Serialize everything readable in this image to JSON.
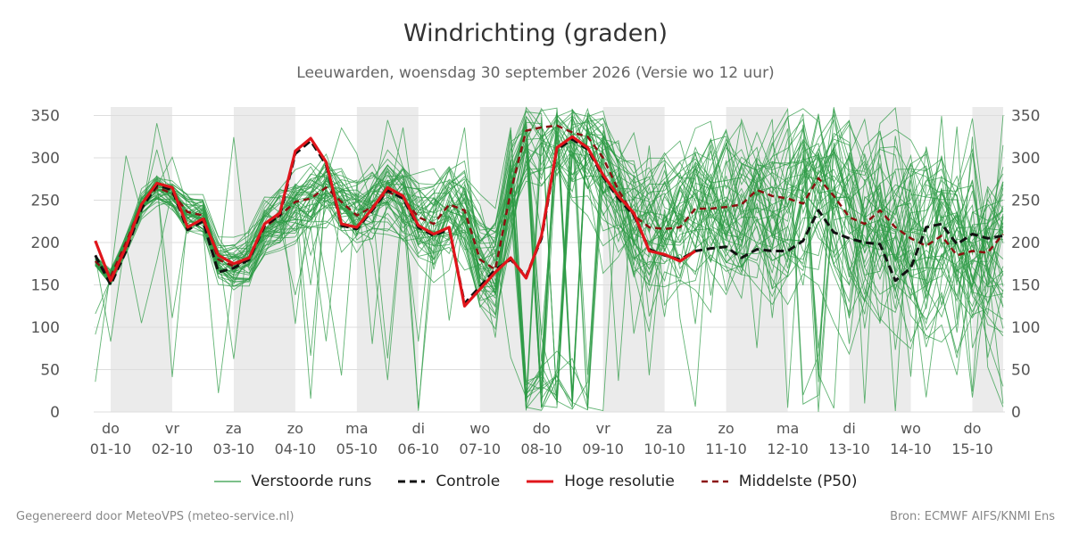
{
  "title": "Windrichting (graden)",
  "subtitle": "Leeuwarden, woensdag 30 september 2026 (Versie wo 12 uur)",
  "footer": {
    "left": "Gegenereerd door MeteoVPS (meteo-service.nl)",
    "right": "Bron: ECMWF AIFS/KNMI Ens"
  },
  "colors": {
    "ensemble": "#2e9b45",
    "control": "#111111",
    "hires": "#e0151b",
    "median": "#8b1010",
    "weekend_shade": "#ebebeb",
    "grid": "#dddddd"
  },
  "chart_data": {
    "type": "line",
    "title": "Windrichting (graden)",
    "ylabel": "",
    "ylim": [
      0,
      360
    ],
    "yticks": [
      0,
      50,
      100,
      150,
      200,
      250,
      300,
      350
    ],
    "x_unit": "day offset from do 01-10 00:00",
    "xlim": [
      -0.2,
      14.5
    ],
    "xticks": [
      {
        "x": 0,
        "day": "do",
        "date": "01-10"
      },
      {
        "x": 1,
        "day": "vr",
        "date": "02-10"
      },
      {
        "x": 2,
        "day": "za",
        "date": "03-10"
      },
      {
        "x": 3,
        "day": "zo",
        "date": "04-10"
      },
      {
        "x": 4,
        "day": "ma",
        "date": "05-10"
      },
      {
        "x": 5,
        "day": "di",
        "date": "06-10"
      },
      {
        "x": 6,
        "day": "wo",
        "date": "07-10"
      },
      {
        "x": 7,
        "day": "do",
        "date": "08-10"
      },
      {
        "x": 8,
        "day": "vr",
        "date": "09-10"
      },
      {
        "x": 9,
        "day": "za",
        "date": "10-10"
      },
      {
        "x": 10,
        "day": "zo",
        "date": "11-10"
      },
      {
        "x": 11,
        "day": "ma",
        "date": "12-10"
      },
      {
        "x": 12,
        "day": "di",
        "date": "13-10"
      },
      {
        "x": 13,
        "day": "wo",
        "date": "14-10"
      },
      {
        "x": 14,
        "day": "do",
        "date": "15-10"
      }
    ],
    "shaded_days": [
      [
        0,
        1
      ],
      [
        2,
        3
      ],
      [
        4,
        5
      ],
      [
        6,
        7
      ],
      [
        8,
        9
      ],
      [
        10,
        11
      ],
      [
        12,
        13
      ],
      [
        14,
        14.5
      ]
    ],
    "grid": true,
    "legend_position": "bottom",
    "series": [
      {
        "name": "Hoge resolutie",
        "style": "solid-red",
        "x": [
          -0.25,
          0,
          0.25,
          0.5,
          0.75,
          1,
          1.25,
          1.5,
          1.75,
          2,
          2.25,
          2.5,
          2.75,
          3,
          3.25,
          3.5,
          3.75,
          4,
          4.25,
          4.5,
          4.75,
          5,
          5.25,
          5.5,
          5.75,
          6,
          6.25,
          6.5,
          6.75,
          7,
          7.25,
          7.5,
          7.75,
          8,
          8.25,
          8.5,
          8.75,
          9,
          9.25,
          9.5
        ],
        "values": [
          202,
          155,
          195,
          245,
          270,
          265,
          218,
          228,
          185,
          175,
          182,
          222,
          235,
          308,
          323,
          295,
          222,
          218,
          240,
          265,
          255,
          220,
          210,
          218,
          125,
          145,
          165,
          182,
          158,
          208,
          312,
          325,
          312,
          280,
          255,
          235,
          190,
          186,
          178,
          190
        ]
      },
      {
        "name": "Controle",
        "style": "dashed-black",
        "x": [
          -0.25,
          0,
          0.25,
          0.5,
          0.75,
          1,
          1.25,
          1.5,
          1.75,
          2,
          2.25,
          2.5,
          2.75,
          3,
          3.25,
          3.5,
          3.75,
          4,
          4.25,
          4.5,
          4.75,
          5,
          5.25,
          5.5,
          5.75,
          6,
          6.25,
          6.5,
          6.75,
          7,
          7.25,
          7.5,
          7.75,
          8,
          8.25,
          8.5,
          8.75,
          9,
          9.25,
          9.5,
          9.75,
          10,
          10.25,
          10.5,
          10.75,
          11,
          11.25,
          11.5,
          11.75,
          12,
          12.25,
          12.5,
          12.75,
          13,
          13.25,
          13.5,
          13.75,
          14,
          14.25,
          14.5
        ],
        "values": [
          185,
          150,
          190,
          240,
          268,
          262,
          215,
          225,
          165,
          170,
          180,
          220,
          232,
          305,
          320,
          292,
          220,
          216,
          238,
          262,
          252,
          218,
          208,
          216,
          128,
          148,
          168,
          180,
          160,
          205,
          310,
          322,
          310,
          278,
          252,
          232,
          192,
          185,
          180,
          190,
          193,
          195,
          182,
          192,
          190,
          190,
          202,
          238,
          212,
          205,
          200,
          198,
          155,
          170,
          218,
          222,
          198,
          210,
          205,
          208
        ]
      },
      {
        "name": "Middelste (P50)",
        "style": "dashed-darkred",
        "x": [
          -0.25,
          0,
          0.25,
          0.5,
          0.75,
          1,
          1.25,
          1.5,
          1.75,
          2,
          2.25,
          2.5,
          2.75,
          3,
          3.25,
          3.5,
          3.75,
          4,
          4.25,
          4.5,
          4.75,
          5,
          5.25,
          5.5,
          5.75,
          6,
          6.25,
          6.5,
          6.75,
          7,
          7.25,
          7.5,
          7.75,
          8,
          8.25,
          8.5,
          8.75,
          9,
          9.25,
          9.5,
          9.75,
          10,
          10.25,
          10.5,
          10.75,
          11,
          11.25,
          11.5,
          11.75,
          12,
          12.25,
          12.5,
          12.75,
          13,
          13.25,
          13.5,
          13.75,
          14,
          14.25,
          14.5
        ],
        "values": [
          178,
          160,
          200,
          245,
          265,
          258,
          236,
          232,
          180,
          172,
          182,
          218,
          232,
          248,
          252,
          265,
          248,
          232,
          242,
          260,
          252,
          230,
          222,
          245,
          238,
          180,
          168,
          260,
          332,
          336,
          338,
          330,
          325,
          300,
          262,
          232,
          218,
          216,
          218,
          240,
          240,
          242,
          245,
          262,
          255,
          252,
          246,
          276,
          255,
          230,
          222,
          238,
          218,
          205,
          196,
          208,
          185,
          190,
          188,
          210
        ]
      }
    ],
    "ensemble": {
      "name": "Verstoorde runs",
      "members": 50,
      "x_step": 0.25,
      "x_start": -0.25,
      "x_end": 14.5,
      "note_values": "50 perturbed runs; individual member values follow the median with increasing spread, wrapping between 0 and 360"
    }
  },
  "legend": [
    {
      "label": "Verstoorde runs",
      "style": "thin-green"
    },
    {
      "label": "Controle",
      "style": "dashed-black"
    },
    {
      "label": "Hoge resolutie",
      "style": "solid-red"
    },
    {
      "label": "Middelste (P50)",
      "style": "dashed-darkred"
    }
  ]
}
